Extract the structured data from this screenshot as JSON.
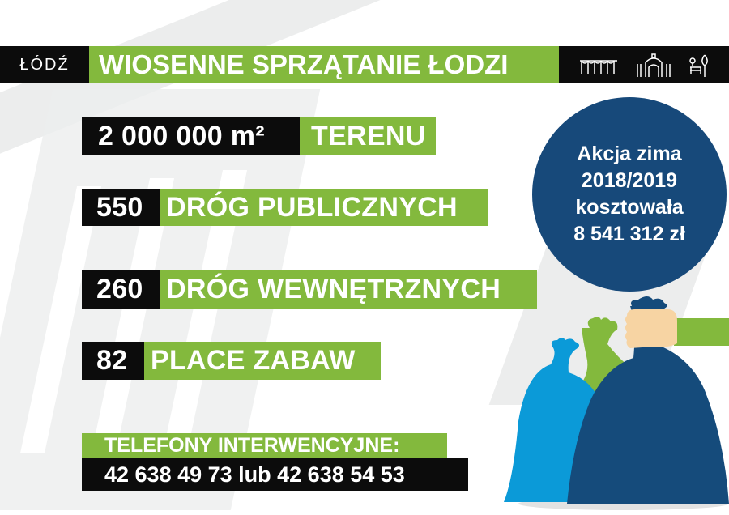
{
  "header": {
    "logo": "ŁÓDŹ",
    "title": "WIOSENNE SPRZĄTANIE ŁODZI",
    "icons": [
      "arches-icon",
      "gate-building-icon",
      "park-bench-tree-icon"
    ]
  },
  "stats": [
    {
      "value": "2 000 000 m²",
      "label": "TERENU"
    },
    {
      "value": "550",
      "label": "DRÓG PUBLICZNYCH"
    },
    {
      "value": "260",
      "label": "DRÓG WEWNĘTRZNYCH"
    },
    {
      "value": "82",
      "label": "PLACE ZABAW"
    }
  ],
  "phones": {
    "label": "TELEFONY INTERWENCYJNE:",
    "numbers": "42 638 49 73 lub 42 638 54 53"
  },
  "winter": {
    "line1": "Akcja zima",
    "line2": "2018/2019",
    "line3": "kosztowała",
    "line4": "8 541 312 zł"
  },
  "colors": {
    "green": "#83b93d",
    "black": "#0c0c0c",
    "navy": "#17497a",
    "blue": "#0b9ad8"
  }
}
